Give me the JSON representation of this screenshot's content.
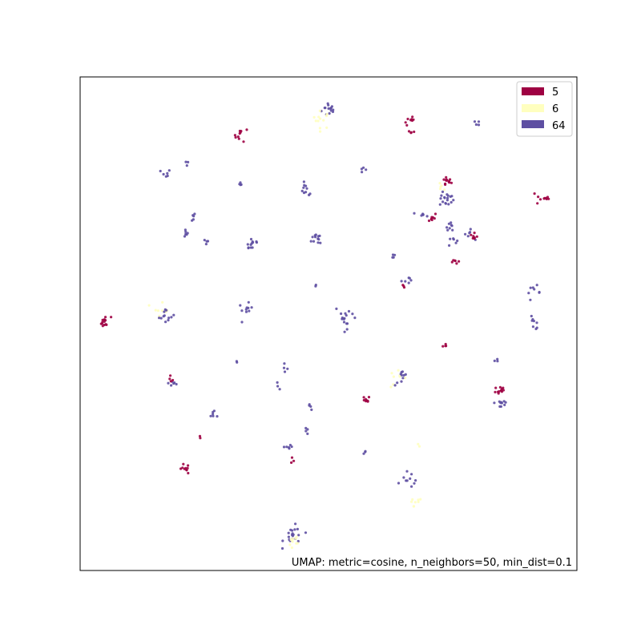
{
  "chart_data": {
    "type": "scatter",
    "title": "",
    "xlabel": "",
    "ylabel": "",
    "axis_ticks": false,
    "xlim": [
      0,
      100
    ],
    "ylim": [
      0,
      100
    ],
    "grid": false,
    "legend": {
      "placement": "top-right",
      "entries": [
        {
          "label": "5",
          "color": "#9e0142"
        },
        {
          "label": "6",
          "color": "#ffffbf"
        },
        {
          "label": "64",
          "color": "#5e4fa2"
        }
      ]
    },
    "annotation": "UMAP: metric=cosine, n_neighbors=50, min_dist=0.1",
    "clusters": [
      {
        "series": "64",
        "cx": 50.2,
        "cy": 93.5,
        "spread": 0.8,
        "n": 14
      },
      {
        "series": "6",
        "cx": 48.6,
        "cy": 91.3,
        "spread": 0.9,
        "n": 12
      },
      {
        "series": "5",
        "cx": 66.5,
        "cy": 91.0,
        "spread": 0.6,
        "n": 8
      },
      {
        "series": "5",
        "cx": 67.0,
        "cy": 89.0,
        "spread": 0.4,
        "n": 4
      },
      {
        "series": "64",
        "cx": 79.8,
        "cy": 90.5,
        "spread": 0.3,
        "n": 4
      },
      {
        "series": "5",
        "cx": 32.4,
        "cy": 88.3,
        "spread": 0.7,
        "n": 10
      },
      {
        "series": "64",
        "cx": 17.2,
        "cy": 80.3,
        "spread": 0.5,
        "n": 6
      },
      {
        "series": "64",
        "cx": 21.5,
        "cy": 82.5,
        "spread": 0.3,
        "n": 3
      },
      {
        "series": "64",
        "cx": 32.0,
        "cy": 78.2,
        "spread": 0.3,
        "n": 4
      },
      {
        "series": "64",
        "cx": 57.0,
        "cy": 81.1,
        "spread": 0.3,
        "n": 4
      },
      {
        "series": "64",
        "cx": 45.5,
        "cy": 77.0,
        "spread": 0.7,
        "n": 10
      },
      {
        "series": "5",
        "cx": 73.7,
        "cy": 78.8,
        "spread": 0.5,
        "n": 12
      },
      {
        "series": "6",
        "cx": 72.8,
        "cy": 77.5,
        "spread": 0.5,
        "n": 5
      },
      {
        "series": "64",
        "cx": 73.8,
        "cy": 75.2,
        "spread": 0.7,
        "n": 18
      },
      {
        "series": "5",
        "cx": 93.3,
        "cy": 75.5,
        "spread": 0.8,
        "n": 10
      },
      {
        "series": "64",
        "cx": 22.3,
        "cy": 71.5,
        "spread": 0.5,
        "n": 5
      },
      {
        "series": "64",
        "cx": 21.0,
        "cy": 68.7,
        "spread": 0.6,
        "n": 6
      },
      {
        "series": "64",
        "cx": 25.2,
        "cy": 66.5,
        "spread": 0.4,
        "n": 4
      },
      {
        "series": "64",
        "cx": 34.6,
        "cy": 66.3,
        "spread": 0.8,
        "n": 12
      },
      {
        "series": "64",
        "cx": 48.0,
        "cy": 67.3,
        "spread": 0.7,
        "n": 12
      },
      {
        "series": "5",
        "cx": 70.8,
        "cy": 71.5,
        "spread": 0.5,
        "n": 8
      },
      {
        "series": "64",
        "cx": 69.0,
        "cy": 71.8,
        "spread": 0.5,
        "n": 6
      },
      {
        "series": "64",
        "cx": 74.5,
        "cy": 70.0,
        "spread": 0.5,
        "n": 8
      },
      {
        "series": "64",
        "cx": 74.8,
        "cy": 67.0,
        "spread": 0.5,
        "n": 6
      },
      {
        "series": "64",
        "cx": 78.2,
        "cy": 68.0,
        "spread": 0.5,
        "n": 6
      },
      {
        "series": "5",
        "cx": 79.4,
        "cy": 67.5,
        "spread": 0.4,
        "n": 8
      },
      {
        "series": "5",
        "cx": 75.5,
        "cy": 62.8,
        "spread": 0.4,
        "n": 6
      },
      {
        "series": "64",
        "cx": 63.0,
        "cy": 63.7,
        "spread": 0.3,
        "n": 4
      },
      {
        "series": "5",
        "cx": 65.0,
        "cy": 57.6,
        "spread": 0.3,
        "n": 3
      },
      {
        "series": "64",
        "cx": 65.5,
        "cy": 58.9,
        "spread": 0.4,
        "n": 6
      },
      {
        "series": "64",
        "cx": 47.4,
        "cy": 57.6,
        "spread": 0.3,
        "n": 2
      },
      {
        "series": "5",
        "cx": 5.0,
        "cy": 50.3,
        "spread": 0.6,
        "n": 14
      },
      {
        "series": "6",
        "cx": 16.5,
        "cy": 53.5,
        "spread": 0.9,
        "n": 8
      },
      {
        "series": "64",
        "cx": 17.5,
        "cy": 51.5,
        "spread": 0.8,
        "n": 12
      },
      {
        "series": "64",
        "cx": 33.3,
        "cy": 52.7,
        "spread": 0.7,
        "n": 10
      },
      {
        "series": "64",
        "cx": 53.7,
        "cy": 51.5,
        "spread": 1.2,
        "n": 16
      },
      {
        "series": "64",
        "cx": 91.3,
        "cy": 56.3,
        "spread": 0.7,
        "n": 8
      },
      {
        "series": "64",
        "cx": 91.3,
        "cy": 50.2,
        "spread": 0.7,
        "n": 8
      },
      {
        "series": "5",
        "cx": 73.5,
        "cy": 45.5,
        "spread": 0.3,
        "n": 4
      },
      {
        "series": "64",
        "cx": 31.5,
        "cy": 42.5,
        "spread": 0.2,
        "n": 2
      },
      {
        "series": "64",
        "cx": 41.0,
        "cy": 41.0,
        "spread": 0.4,
        "n": 4
      },
      {
        "series": "64",
        "cx": 39.5,
        "cy": 37.5,
        "spread": 0.3,
        "n": 3
      },
      {
        "series": "6",
        "cx": 63.8,
        "cy": 38.8,
        "spread": 0.9,
        "n": 8
      },
      {
        "series": "64",
        "cx": 65.0,
        "cy": 39.0,
        "spread": 0.8,
        "n": 10
      },
      {
        "series": "64",
        "cx": 83.7,
        "cy": 42.5,
        "spread": 0.3,
        "n": 3
      },
      {
        "series": "5",
        "cx": 84.5,
        "cy": 36.5,
        "spread": 0.6,
        "n": 12
      },
      {
        "series": "64",
        "cx": 84.8,
        "cy": 34.0,
        "spread": 0.7,
        "n": 10
      },
      {
        "series": "64",
        "cx": 18.8,
        "cy": 38.0,
        "spread": 0.5,
        "n": 6
      },
      {
        "series": "5",
        "cx": 18.3,
        "cy": 38.5,
        "spread": 0.3,
        "n": 4
      },
      {
        "series": "64",
        "cx": 27.0,
        "cy": 31.6,
        "spread": 0.6,
        "n": 6
      },
      {
        "series": "64",
        "cx": 46.5,
        "cy": 33.3,
        "spread": 0.5,
        "n": 4
      },
      {
        "series": "64",
        "cx": 45.5,
        "cy": 28.2,
        "spread": 0.3,
        "n": 4
      },
      {
        "series": "5",
        "cx": 57.5,
        "cy": 34.5,
        "spread": 0.4,
        "n": 8
      },
      {
        "series": "5",
        "cx": 24.2,
        "cy": 27.0,
        "spread": 0.2,
        "n": 2
      },
      {
        "series": "64",
        "cx": 41.5,
        "cy": 24.5,
        "spread": 0.7,
        "n": 6
      },
      {
        "series": "5",
        "cx": 42.8,
        "cy": 22.3,
        "spread": 0.3,
        "n": 3
      },
      {
        "series": "64",
        "cx": 57.2,
        "cy": 23.8,
        "spread": 0.3,
        "n": 3
      },
      {
        "series": "6",
        "cx": 68.3,
        "cy": 25.3,
        "spread": 0.2,
        "n": 2
      },
      {
        "series": "5",
        "cx": 21.0,
        "cy": 20.5,
        "spread": 0.5,
        "n": 10
      },
      {
        "series": "64",
        "cx": 66.5,
        "cy": 18.5,
        "spread": 0.9,
        "n": 10
      },
      {
        "series": "6",
        "cx": 67.3,
        "cy": 13.3,
        "spread": 0.8,
        "n": 8
      },
      {
        "series": "64",
        "cx": 43.0,
        "cy": 7.0,
        "spread": 1.0,
        "n": 20
      },
      {
        "series": "6",
        "cx": 43.5,
        "cy": 6.0,
        "spread": 0.8,
        "n": 10
      }
    ]
  }
}
